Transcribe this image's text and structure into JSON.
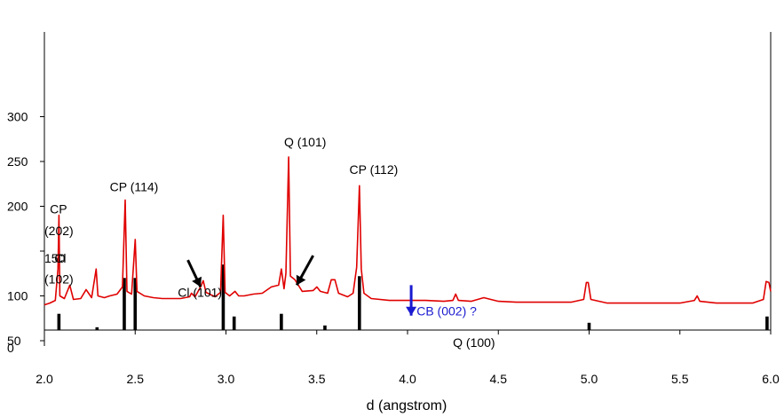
{
  "chart_data": {
    "type": "line",
    "title": "",
    "xlabel": "d (angstrom)",
    "ylabel": "",
    "xlim": [
      2.0,
      6.0
    ],
    "ylim": [
      0,
      300
    ],
    "xticks": [
      "2.0",
      "2.5",
      "3.0",
      "3.5",
      "4.0",
      "4.5",
      "5.0",
      "5.5",
      "6.0"
    ],
    "xtick_values": [
      2.0,
      2.5,
      3.0,
      3.5,
      4.0,
      4.5,
      5.0,
      5.5,
      6.0
    ],
    "yticks": [
      "0",
      "50",
      "100",
      "150",
      "200",
      "250",
      "300"
    ],
    "ytick_values": [
      0,
      50,
      100,
      150,
      200,
      250,
      300
    ],
    "grid": false,
    "colors": {
      "trace": "#e00000",
      "reference_bars": "#000000",
      "annotation_blue": "#1a1ad0",
      "annotation_black": "#000000"
    },
    "series": [
      {
        "color": "#e00000",
        "points": [
          [
            2.0,
            90
          ],
          [
            2.03,
            92
          ],
          [
            2.06,
            95
          ],
          [
            2.075,
            130
          ],
          [
            2.08,
            190
          ],
          [
            2.085,
            100
          ],
          [
            2.11,
            97
          ],
          [
            2.14,
            112
          ],
          [
            2.16,
            96
          ],
          [
            2.2,
            97
          ],
          [
            2.23,
            107
          ],
          [
            2.26,
            98
          ],
          [
            2.285,
            130
          ],
          [
            2.295,
            100
          ],
          [
            2.33,
            98
          ],
          [
            2.36,
            100
          ],
          [
            2.4,
            102
          ],
          [
            2.43,
            110
          ],
          [
            2.445,
            207
          ],
          [
            2.455,
            105
          ],
          [
            2.48,
            102
          ],
          [
            2.5,
            163
          ],
          [
            2.51,
            105
          ],
          [
            2.55,
            100
          ],
          [
            2.6,
            98
          ],
          [
            2.65,
            97
          ],
          [
            2.7,
            97
          ],
          [
            2.75,
            97
          ],
          [
            2.8,
            99
          ],
          [
            2.81,
            103
          ],
          [
            2.83,
            99
          ],
          [
            2.86,
            110
          ],
          [
            2.875,
            117
          ],
          [
            2.89,
            104
          ],
          [
            2.94,
            99
          ],
          [
            2.97,
            104
          ],
          [
            2.985,
            190
          ],
          [
            2.995,
            104
          ],
          [
            3.02,
            100
          ],
          [
            3.05,
            105
          ],
          [
            3.07,
            100
          ],
          [
            3.1,
            100
          ],
          [
            3.15,
            102
          ],
          [
            3.2,
            103
          ],
          [
            3.25,
            110
          ],
          [
            3.29,
            112
          ],
          [
            3.305,
            130
          ],
          [
            3.32,
            108
          ],
          [
            3.33,
            125
          ],
          [
            3.345,
            255
          ],
          [
            3.355,
            122
          ],
          [
            3.38,
            118
          ],
          [
            3.42,
            105
          ],
          [
            3.48,
            106
          ],
          [
            3.5,
            110
          ],
          [
            3.52,
            105
          ],
          [
            3.56,
            103
          ],
          [
            3.58,
            118
          ],
          [
            3.6,
            118
          ],
          [
            3.62,
            103
          ],
          [
            3.67,
            99
          ],
          [
            3.7,
            103
          ],
          [
            3.72,
            132
          ],
          [
            3.735,
            223
          ],
          [
            3.745,
            130
          ],
          [
            3.76,
            103
          ],
          [
            3.8,
            97
          ],
          [
            3.9,
            95
          ],
          [
            4.0,
            95
          ],
          [
            4.1,
            95
          ],
          [
            4.2,
            94
          ],
          [
            4.25,
            95
          ],
          [
            4.265,
            102
          ],
          [
            4.28,
            95
          ],
          [
            4.35,
            94
          ],
          [
            4.42,
            98
          ],
          [
            4.5,
            94
          ],
          [
            4.6,
            93
          ],
          [
            4.7,
            93
          ],
          [
            4.8,
            93
          ],
          [
            4.9,
            93
          ],
          [
            4.97,
            96
          ],
          [
            4.985,
            115
          ],
          [
            4.995,
            115
          ],
          [
            5.01,
            96
          ],
          [
            5.1,
            92
          ],
          [
            5.2,
            92
          ],
          [
            5.3,
            92
          ],
          [
            5.4,
            92
          ],
          [
            5.5,
            92
          ],
          [
            5.58,
            95
          ],
          [
            5.595,
            100
          ],
          [
            5.61,
            94
          ],
          [
            5.7,
            92
          ],
          [
            5.8,
            92
          ],
          [
            5.9,
            92
          ],
          [
            5.96,
            96
          ],
          [
            5.975,
            116
          ],
          [
            5.99,
            115
          ],
          [
            6.0,
            105
          ]
        ]
      }
    ],
    "reference_bars": [
      {
        "d": 2.08,
        "h": 80
      },
      {
        "d": 2.14,
        "h": 58
      },
      {
        "d": 2.2,
        "h": 56
      },
      {
        "d": 2.24,
        "h": 60
      },
      {
        "d": 2.29,
        "h": 65
      },
      {
        "d": 2.31,
        "h": 55
      },
      {
        "d": 2.42,
        "h": 55
      },
      {
        "d": 2.44,
        "h": 120
      },
      {
        "d": 2.5,
        "h": 120
      },
      {
        "d": 2.79,
        "h": 56
      },
      {
        "d": 2.985,
        "h": 135
      },
      {
        "d": 3.045,
        "h": 77
      },
      {
        "d": 3.305,
        "h": 80
      },
      {
        "d": 3.545,
        "h": 67
      },
      {
        "d": 3.735,
        "h": 122
      },
      {
        "d": 5.0,
        "h": 70
      },
      {
        "d": 5.6,
        "h": 58
      },
      {
        "d": 5.98,
        "h": 77
      }
    ],
    "annotations": [
      {
        "label": "Q (101)",
        "d": 3.32,
        "y": 272,
        "color": "#000000"
      },
      {
        "label": "CP (114)",
        "d": 2.36,
        "y": 222,
        "color": "#000000"
      },
      {
        "label": "CP (112)",
        "d": 3.68,
        "y": 241,
        "color": "#000000"
      },
      {
        "label": "CP",
        "d": 2.03,
        "y": 197,
        "color": "#000000"
      },
      {
        "label": "(202)",
        "d": 2.0,
        "y": 173,
        "color": "#000000"
      },
      {
        "label": "150",
        "d": 2.0,
        "y": 142,
        "color": "#000000"
      },
      {
        "label": "Cl",
        "d": 2.055,
        "y": 142,
        "color": "#000000"
      },
      {
        "label": "(102)",
        "d": 2.0,
        "y": 119,
        "color": "#000000"
      },
      {
        "label": "Cl (101)",
        "d": 2.735,
        "y": 104,
        "color": "#000000"
      },
      {
        "label": "CB (002) ?",
        "d": 4.05,
        "y": 83,
        "color": "#1a1ad0"
      },
      {
        "label": "Q (100)",
        "d": 4.25,
        "y": 48,
        "color": "#000000"
      }
    ],
    "arrows": [
      {
        "from": [
          2.79,
          140
        ],
        "to": [
          2.86,
          110
        ],
        "color": "#000000"
      },
      {
        "from": [
          3.48,
          145
        ],
        "to": [
          3.39,
          112
        ],
        "color": "#000000"
      },
      {
        "from": [
          4.02,
          112
        ],
        "to": [
          4.02,
          78
        ],
        "color": "#1a1ad0"
      }
    ]
  }
}
